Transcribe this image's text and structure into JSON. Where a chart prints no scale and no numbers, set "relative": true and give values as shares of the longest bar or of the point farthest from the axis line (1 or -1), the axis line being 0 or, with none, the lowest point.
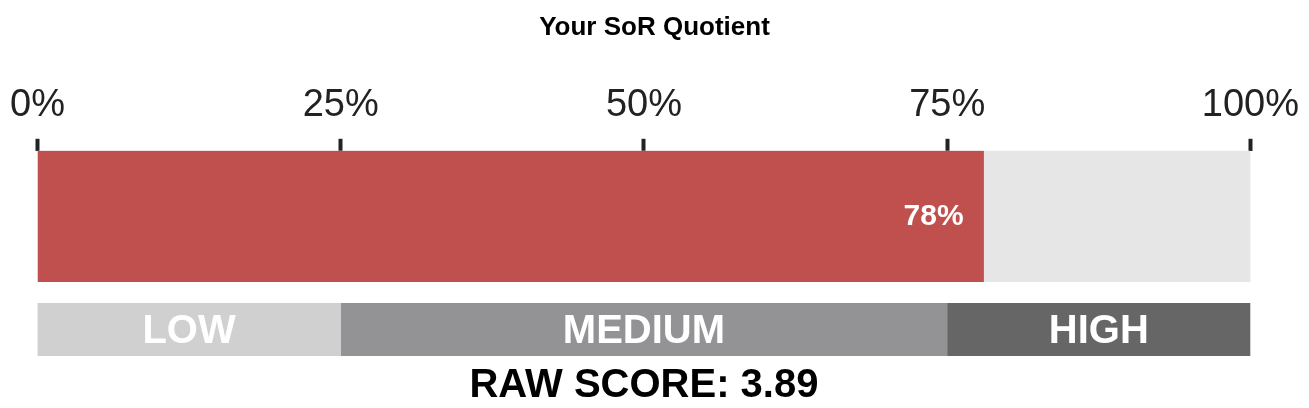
{
  "chart_data": [
    {
      "type": "bar",
      "orientation": "horizontal",
      "title": "Your SoR Quotient",
      "categories": [
        null
      ],
      "values": [
        78
      ],
      "color": "#c0504d",
      "value_labels": [
        "78%"
      ],
      "xlim": [
        0,
        100
      ],
      "xticks": [
        {
          "value": 0,
          "label": "0%"
        },
        {
          "value": 25,
          "label": "25%"
        },
        {
          "value": 50,
          "label": "50%"
        },
        {
          "value": 75,
          "label": "75%"
        },
        {
          "value": 100,
          "label": "100%"
        }
      ],
      "tick_labels": "x",
      "grid": false,
      "legend": false
    },
    {
      "type": "bar",
      "orientation": "horizontal",
      "stacked": true,
      "categories": [
        null
      ],
      "series": [
        {
          "name": "LOW",
          "color": "#d0d0d0",
          "values": [
            0.25
          ]
        },
        {
          "name": "MEDIUM",
          "color": "#939396",
          "values": [
            0.5
          ]
        },
        {
          "name": "HIGH",
          "color": "#666666",
          "values": [
            0.25
          ]
        }
      ],
      "relative": true,
      "tick_labels": false,
      "annotations": [
        "RAW SCORE: 3.89"
      ],
      "grid": false,
      "legend": false
    }
  ]
}
